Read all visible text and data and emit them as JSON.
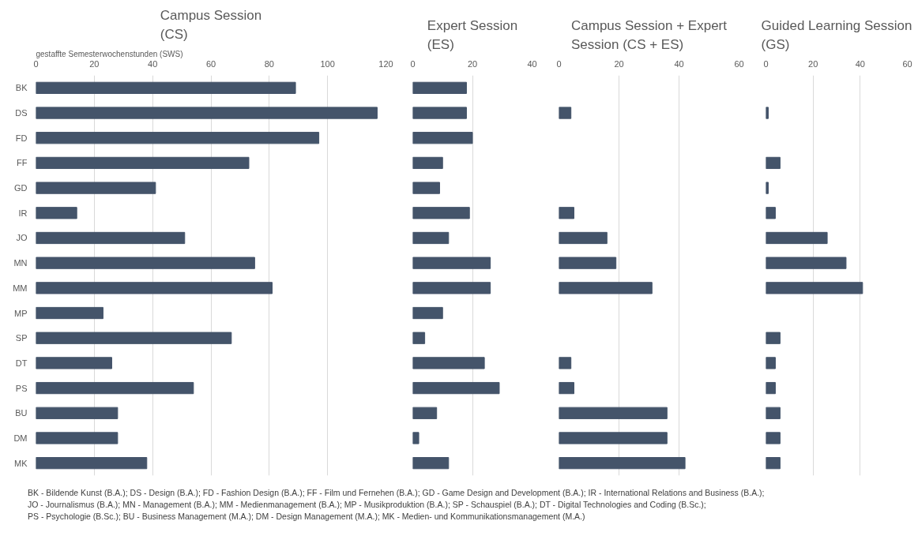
{
  "chart_data": [
    {
      "type": "bar",
      "orientation": "horizontal",
      "title": "Campus Session (CS)",
      "xlabel": "gestaffte Semesterwochenstunden  (SWS)",
      "categories": [
        "BK",
        "DS",
        "FD",
        "FF",
        "GD",
        "IR",
        "JO",
        "MN",
        "MM",
        "MP",
        "SP",
        "DT",
        "PS",
        "BU",
        "DM",
        "MK"
      ],
      "values": [
        89,
        117,
        97,
        73,
        41,
        14,
        51,
        75,
        81,
        23,
        67,
        26,
        54,
        28,
        28,
        38
      ],
      "color": "#44546a",
      "xlim": [
        0,
        120
      ],
      "xticks": [
        0,
        20,
        40,
        60,
        80,
        100,
        120
      ],
      "grid": "x",
      "annotations": [
        "BK - Bildende Kunst (B.A.); DS - Design (B.A.); FD - Fashion Design (B.A.); FF - Film und Fernehen (B.A.); GD - Game Design and Development (B.A.); IR - International Relations and Business (B.A.);",
        "JO - Journalismus (B.A.); MN - Management (B.A.); MM - Medienmanagement (B.A.); MP - Musikproduktion (B.A.); SP - Schauspiel (B.A.); DT - Digital Technologies and Coding (B.Sc.);",
        "PS - Psychologie (B.Sc.); BU - Business Management (M.A.); DM - Design Management (M.A.); MK - Medien- und Kommunikationsmanagement (M.A.)"
      ]
    },
    {
      "type": "bar",
      "orientation": "horizontal",
      "title": "Expert Session (ES)",
      "categories": [
        "BK",
        "DS",
        "FD",
        "FF",
        "GD",
        "IR",
        "JO",
        "MN",
        "MM",
        "MP",
        "SP",
        "DT",
        "PS",
        "BU",
        "DM",
        "MK"
      ],
      "values": [
        18,
        18,
        20,
        10,
        9,
        19,
        12,
        26,
        26,
        10,
        4,
        24,
        29,
        8,
        2,
        12
      ],
      "color": "#44546a",
      "xlim": [
        0,
        40
      ],
      "xticks": [
        0,
        20,
        40
      ],
      "grid": "x",
      "tick_labels": "x"
    },
    {
      "type": "bar",
      "orientation": "horizontal",
      "title": "Campus Session + Expert Session (CS + ES)",
      "categories": [
        "BK",
        "DS",
        "FD",
        "FF",
        "GD",
        "IR",
        "JO",
        "MN",
        "MM",
        "MP",
        "SP",
        "DT",
        "PS",
        "BU",
        "DM",
        "MK"
      ],
      "values": [
        null,
        4,
        null,
        null,
        null,
        5,
        16,
        19,
        31,
        null,
        null,
        4,
        5,
        36,
        36,
        42
      ],
      "color": "#44546a",
      "xlim": [
        0,
        60
      ],
      "xticks": [
        0,
        20,
        40,
        60
      ],
      "grid": "x",
      "tick_labels": "x"
    },
    {
      "type": "bar",
      "orientation": "horizontal",
      "title": "Guided Learning Session (GS)",
      "categories": [
        "BK",
        "DS",
        "FD",
        "FF",
        "GD",
        "IR",
        "JO",
        "MN",
        "MM",
        "MP",
        "SP",
        "DT",
        "PS",
        "BU",
        "DM",
        "MK"
      ],
      "values": [
        null,
        1,
        null,
        6,
        1,
        4,
        26,
        34,
        41,
        null,
        6,
        4,
        4,
        6,
        6,
        6
      ],
      "color": "#44546a",
      "xlim": [
        0,
        60
      ],
      "xticks": [
        0,
        20,
        40,
        60
      ],
      "grid": "x",
      "tick_labels": "x"
    }
  ]
}
